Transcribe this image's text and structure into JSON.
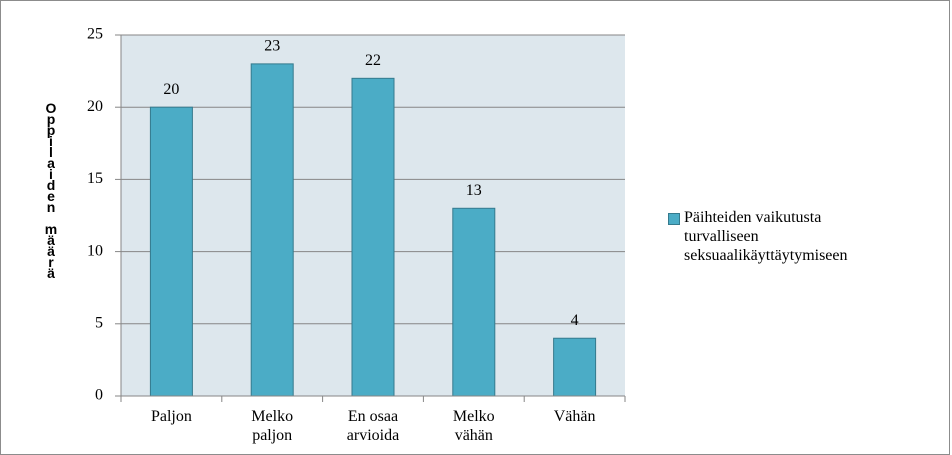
{
  "chart_data": {
    "type": "bar",
    "y_label": "Oppilaiden määrä",
    "categories": [
      "Paljon",
      "Melko paljon",
      "En osaa arvioida",
      "Melko vähän",
      "Vähän"
    ],
    "series": [
      {
        "name": "Päihteiden vaikutusta turvalliseen seksuaalikäyttäytymiseen",
        "color": "#4bacc6",
        "values": [
          20,
          23,
          22,
          13,
          4
        ]
      }
    ],
    "ylim": [
      0,
      25
    ],
    "yticks": [
      0,
      5,
      10,
      15,
      20,
      25
    ],
    "grid": true,
    "legend": "right"
  }
}
